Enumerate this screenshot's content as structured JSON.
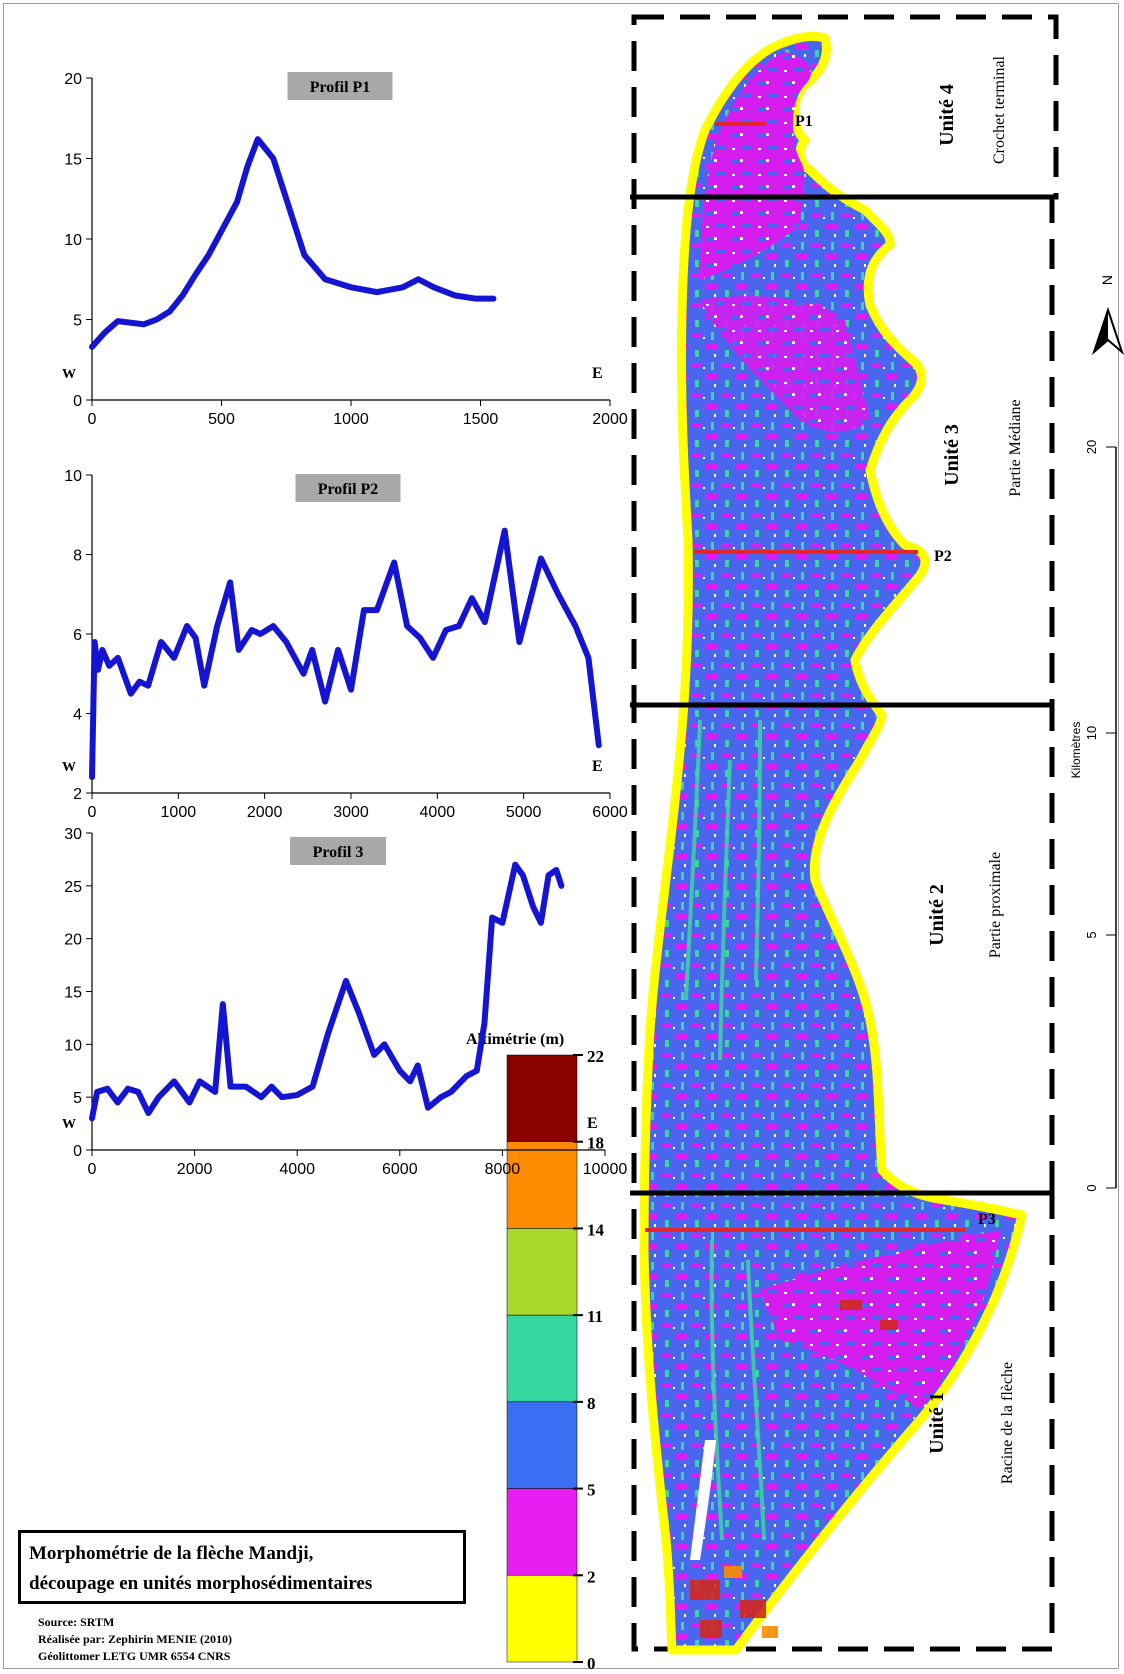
{
  "title": {
    "line1": "Morphométrie de la flèche Mandji,",
    "line2": "découpage en unités morphosédimentaires"
  },
  "credits": {
    "source": "Source: SRTM",
    "author": "Réalisée par: Zephirin MENIE (2010)",
    "lab": "Géolittomer LETG UMR 6554 CNRS"
  },
  "chart_data": [
    {
      "type": "line",
      "title": "Profil P1",
      "xlim": [
        0,
        2000
      ],
      "ylim": [
        0,
        20
      ],
      "xticks": [
        "0",
        "500",
        "1000",
        "1500",
        "2000"
      ],
      "yticks": [
        "0",
        "5",
        "10",
        "15",
        "20"
      ],
      "west_label": "W",
      "east_label": "E",
      "line_color": "#1414d2",
      "x": [
        0,
        50,
        100,
        150,
        200,
        250,
        300,
        350,
        400,
        450,
        500,
        560,
        600,
        640,
        700,
        760,
        820,
        900,
        1000,
        1100,
        1200,
        1260,
        1320,
        1400,
        1480,
        1550
      ],
      "y": [
        3.3,
        4.2,
        4.9,
        4.8,
        4.7,
        5.0,
        5.5,
        6.5,
        7.8,
        9.0,
        10.5,
        12.3,
        14.5,
        16.2,
        15.0,
        12.0,
        9.0,
        7.5,
        7.0,
        6.7,
        7.0,
        7.5,
        7.0,
        6.5,
        6.3,
        6.3
      ]
    },
    {
      "type": "line",
      "title": "Profil P2",
      "xlim": [
        0,
        6000
      ],
      "ylim": [
        2,
        10
      ],
      "xticks": [
        "0",
        "1000",
        "2000",
        "3000",
        "4000",
        "5000",
        "6000"
      ],
      "yticks": [
        "2",
        "4",
        "6",
        "8",
        "10"
      ],
      "west_label": "W",
      "east_label": "E",
      "line_color": "#1414d2",
      "x": [
        0,
        30,
        70,
        120,
        200,
        300,
        450,
        550,
        650,
        800,
        950,
        1100,
        1200,
        1300,
        1450,
        1600,
        1700,
        1850,
        1950,
        2100,
        2250,
        2450,
        2550,
        2700,
        2850,
        3000,
        3150,
        3300,
        3500,
        3650,
        3800,
        3950,
        4100,
        4250,
        4400,
        4550,
        4780,
        4950,
        5200,
        5400,
        5600,
        5750,
        5870
      ],
      "y": [
        2.4,
        5.8,
        5.1,
        5.6,
        5.2,
        5.4,
        4.5,
        4.8,
        4.7,
        5.8,
        5.4,
        6.2,
        5.9,
        4.7,
        6.2,
        7.3,
        5.6,
        6.1,
        6.0,
        6.2,
        5.8,
        5.0,
        5.6,
        4.3,
        5.6,
        4.6,
        6.6,
        6.6,
        7.8,
        6.2,
        5.9,
        5.4,
        6.1,
        6.2,
        6.9,
        6.3,
        8.6,
        5.8,
        7.9,
        7.0,
        6.2,
        5.4,
        3.2
      ]
    },
    {
      "type": "line",
      "title": "Profil 3",
      "xlim": [
        0,
        10000
      ],
      "ylim": [
        0,
        30
      ],
      "xticks": [
        "0",
        "2000",
        "4000",
        "6000",
        "8000",
        "10000"
      ],
      "yticks": [
        "0",
        "5",
        "10",
        "15",
        "20",
        "25",
        "30"
      ],
      "west_label": "W",
      "east_label": "E",
      "line_color": "#1414d2",
      "x": [
        0,
        100,
        300,
        500,
        700,
        900,
        1100,
        1300,
        1600,
        1900,
        2100,
        2400,
        2550,
        2700,
        3000,
        3300,
        3500,
        3700,
        4000,
        4300,
        4600,
        4950,
        5200,
        5500,
        5700,
        6000,
        6200,
        6350,
        6550,
        6800,
        7000,
        7300,
        7500,
        7650,
        7800,
        8000,
        8250,
        8400,
        8600,
        8750,
        8900,
        9050,
        9150
      ],
      "y": [
        3.0,
        5.5,
        5.8,
        4.5,
        5.8,
        5.5,
        3.5,
        5.0,
        6.5,
        4.5,
        6.5,
        5.5,
        13.8,
        6.0,
        6.0,
        5.0,
        6.0,
        5.0,
        5.2,
        6.0,
        11.0,
        16.0,
        13.0,
        9.0,
        10.0,
        7.5,
        6.5,
        8.0,
        4.0,
        5.0,
        5.5,
        7.0,
        7.5,
        12.0,
        22.0,
        21.5,
        27.0,
        26.0,
        23.0,
        21.5,
        26.0,
        26.5,
        25.0
      ]
    }
  ],
  "map": {
    "units": [
      {
        "name": "Unité 4",
        "desc": "Crochet terminal"
      },
      {
        "name": "Unité 3",
        "desc": "Partie Médiane"
      },
      {
        "name": "Unité 2",
        "desc": "Partie proximale"
      },
      {
        "name": "Unité 1",
        "desc": "Racine de la flèche"
      }
    ],
    "profile_labels": [
      "P1",
      "P2",
      "P3"
    ],
    "north_label": "N",
    "scale_title": "Kilomètres",
    "scale_ticks": [
      "0",
      "5",
      "10",
      "20"
    ]
  },
  "legend": {
    "title": "Altimétrie (m)",
    "ticks": [
      "22",
      "18",
      "14",
      "11",
      "8",
      "5",
      "2",
      "0"
    ],
    "colors": [
      "#8b0000",
      "#ff8c00",
      "#a6d92c",
      "#36d6a0",
      "#3b6ef2",
      "#e61ef2",
      "#ffff00"
    ]
  }
}
